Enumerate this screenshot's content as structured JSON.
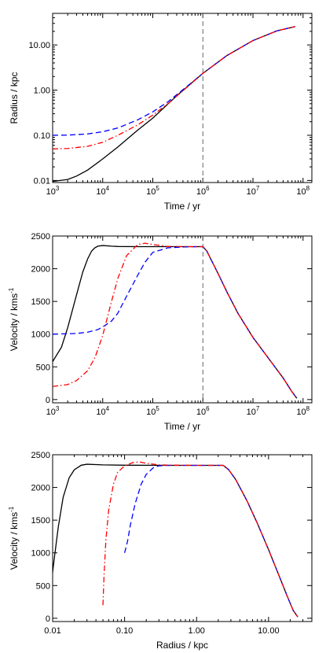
{
  "chart_data": [
    {
      "type": "line",
      "xlabel": "Time / yr",
      "ylabel": "Radius / kpc",
      "xscale": "log",
      "yscale": "log",
      "xlim": [
        1000,
        150000000
      ],
      "ylim": [
        0.009,
        50
      ],
      "xticks": [
        {
          "v": 1000,
          "base": "10",
          "exp": "3"
        },
        {
          "v": 10000,
          "base": "10",
          "exp": "4"
        },
        {
          "v": 100000,
          "base": "10",
          "exp": "5"
        },
        {
          "v": 1000000,
          "base": "10",
          "exp": "6"
        },
        {
          "v": 10000000,
          "base": "10",
          "exp": "7"
        },
        {
          "v": 100000000,
          "base": "10",
          "exp": "8"
        }
      ],
      "yticks": [
        {
          "v": 0.01,
          "label": "0.01"
        },
        {
          "v": 0.1,
          "label": "0.10"
        },
        {
          "v": 1,
          "label": "1.00"
        },
        {
          "v": 10,
          "label": "10.00"
        }
      ],
      "vline": 1000000,
      "series": [
        {
          "style": "solid",
          "color": "#000000",
          "x": [
            1000,
            2000,
            3000,
            5000,
            10000,
            20000,
            50000,
            100000,
            300000,
            1000000,
            3000000,
            10000000,
            30000000,
            70000000
          ],
          "y": [
            0.0095,
            0.0105,
            0.0125,
            0.017,
            0.03,
            0.055,
            0.13,
            0.24,
            0.75,
            2.35,
            5.8,
            12.5,
            20.5,
            25.5
          ]
        },
        {
          "style": "dashed",
          "color": "#0000ff",
          "x": [
            1000,
            2000,
            5000,
            10000,
            20000,
            50000,
            100000,
            200000,
            500000,
            1000000,
            3000000,
            10000000,
            30000000,
            70000000
          ],
          "y": [
            0.1,
            0.101,
            0.107,
            0.12,
            0.145,
            0.22,
            0.33,
            0.55,
            1.25,
            2.35,
            5.8,
            12.5,
            20.5,
            25.5
          ]
        },
        {
          "style": "dashdot",
          "color": "#ff0000",
          "x": [
            1000,
            2000,
            5000,
            10000,
            20000,
            50000,
            100000,
            200000,
            500000,
            1000000,
            3000000,
            10000000,
            30000000,
            70000000
          ],
          "y": [
            0.05,
            0.051,
            0.057,
            0.07,
            0.1,
            0.17,
            0.28,
            0.5,
            1.2,
            2.35,
            5.8,
            12.5,
            20.5,
            25.5
          ]
        }
      ]
    },
    {
      "type": "line",
      "xlabel": "Time / yr",
      "ylabel": "Velocity / kms",
      "ylabel_sup": "-1",
      "xscale": "log",
      "yscale": "linear",
      "xlim": [
        1000,
        150000000
      ],
      "ylim": [
        -50,
        2500
      ],
      "xticks": [
        {
          "v": 1000,
          "base": "10",
          "exp": "3"
        },
        {
          "v": 10000,
          "base": "10",
          "exp": "4"
        },
        {
          "v": 100000,
          "base": "10",
          "exp": "5"
        },
        {
          "v": 1000000,
          "base": "10",
          "exp": "6"
        },
        {
          "v": 10000000,
          "base": "10",
          "exp": "7"
        },
        {
          "v": 100000000,
          "base": "10",
          "exp": "8"
        }
      ],
      "yticks": [
        {
          "v": 0,
          "label": "0"
        },
        {
          "v": 500,
          "label": "500"
        },
        {
          "v": 1000,
          "label": "1000"
        },
        {
          "v": 1500,
          "label": "1500"
        },
        {
          "v": 2000,
          "label": "2000"
        },
        {
          "v": 2500,
          "label": "2500"
        }
      ],
      "vline": 1000000,
      "series": [
        {
          "style": "solid",
          "color": "#000000",
          "x": [
            1000,
            1500,
            2000,
            3000,
            4000,
            5000,
            6000,
            7000,
            8000,
            10000,
            15000,
            20000,
            50000,
            100000,
            500000,
            1000000,
            1200000,
            1500000,
            2000000,
            3000000,
            5000000,
            10000000,
            20000000,
            40000000,
            60000000,
            75000000
          ],
          "y": [
            580,
            800,
            1100,
            1600,
            1950,
            2150,
            2270,
            2320,
            2345,
            2355,
            2345,
            2340,
            2338,
            2338,
            2338,
            2338,
            2270,
            2120,
            1930,
            1650,
            1320,
            950,
            640,
            330,
            120,
            20
          ]
        },
        {
          "style": "dashed",
          "color": "#0000ff",
          "x": [
            1000,
            3000,
            5000,
            8000,
            10000,
            15000,
            20000,
            30000,
            50000,
            70000,
            100000,
            200000,
            500000,
            1000000,
            1200000,
            1500000,
            2000000,
            3000000,
            5000000,
            10000000,
            20000000,
            40000000,
            60000000,
            75000000
          ],
          "y": [
            1000,
            1010,
            1030,
            1070,
            1110,
            1200,
            1320,
            1580,
            1900,
            2100,
            2250,
            2320,
            2335,
            2338,
            2270,
            2120,
            1930,
            1650,
            1320,
            950,
            640,
            330,
            120,
            20
          ]
        },
        {
          "style": "dashdot",
          "color": "#ff0000",
          "x": [
            1000,
            2000,
            3000,
            5000,
            7000,
            10000,
            15000,
            20000,
            30000,
            50000,
            70000,
            100000,
            200000,
            500000,
            1000000,
            1200000,
            1500000,
            2000000,
            3000000,
            5000000,
            10000000,
            20000000,
            40000000,
            60000000,
            75000000
          ],
          "y": [
            200,
            230,
            290,
            440,
            640,
            980,
            1500,
            1850,
            2200,
            2370,
            2390,
            2370,
            2340,
            2338,
            2338,
            2270,
            2120,
            1930,
            1650,
            1320,
            950,
            640,
            330,
            120,
            20
          ]
        }
      ]
    },
    {
      "type": "line",
      "xlabel": "Radius / kpc",
      "ylabel": "Velocity / kms",
      "ylabel_sup": "-1",
      "xscale": "log",
      "yscale": "linear",
      "xlim": [
        0.01,
        40
      ],
      "ylim": [
        -50,
        2500
      ],
      "xticks": [
        {
          "v": 0.01,
          "label": "0.01"
        },
        {
          "v": 0.1,
          "label": "0.10"
        },
        {
          "v": 1,
          "label": "1.00"
        },
        {
          "v": 10,
          "label": "10.00"
        }
      ],
      "yticks": [
        {
          "v": 0,
          "label": "0"
        },
        {
          "v": 500,
          "label": "500"
        },
        {
          "v": 1000,
          "label": "1000"
        },
        {
          "v": 1500,
          "label": "1500"
        },
        {
          "v": 2000,
          "label": "2000"
        },
        {
          "v": 2500,
          "label": "2500"
        }
      ],
      "series": [
        {
          "style": "solid",
          "color": "#000000",
          "x": [
            0.0095,
            0.0105,
            0.012,
            0.014,
            0.017,
            0.02,
            0.025,
            0.03,
            0.05,
            0.1,
            0.5,
            1,
            2.35,
            2.8,
            3.5,
            5,
            7,
            10,
            14,
            18,
            22,
            25.5
          ],
          "y": [
            500,
            900,
            1400,
            1850,
            2150,
            2270,
            2340,
            2355,
            2345,
            2340,
            2338,
            2338,
            2338,
            2270,
            2120,
            1800,
            1450,
            1050,
            650,
            350,
            120,
            20
          ]
        },
        {
          "style": "dashed",
          "color": "#0000ff",
          "x": [
            0.1,
            0.11,
            0.12,
            0.14,
            0.17,
            0.2,
            0.25,
            0.3,
            0.4,
            0.6,
            1,
            2.35,
            2.8,
            3.5,
            5,
            7,
            10,
            14,
            18,
            22,
            25.5
          ],
          "y": [
            1000,
            1180,
            1420,
            1750,
            2050,
            2200,
            2300,
            2330,
            2338,
            2338,
            2338,
            2338,
            2270,
            2120,
            1800,
            1450,
            1050,
            650,
            350,
            120,
            20
          ]
        },
        {
          "style": "dashdot",
          "color": "#ff0000",
          "x": [
            0.05,
            0.052,
            0.055,
            0.06,
            0.07,
            0.08,
            0.1,
            0.13,
            0.16,
            0.2,
            0.3,
            0.5,
            1,
            2.35,
            2.8,
            3.5,
            5,
            7,
            10,
            14,
            18,
            22,
            25.5
          ],
          "y": [
            200,
            700,
            1200,
            1650,
            2050,
            2230,
            2330,
            2380,
            2390,
            2370,
            2345,
            2340,
            2338,
            2338,
            2270,
            2120,
            1800,
            1450,
            1050,
            650,
            350,
            120,
            20
          ]
        }
      ]
    }
  ]
}
